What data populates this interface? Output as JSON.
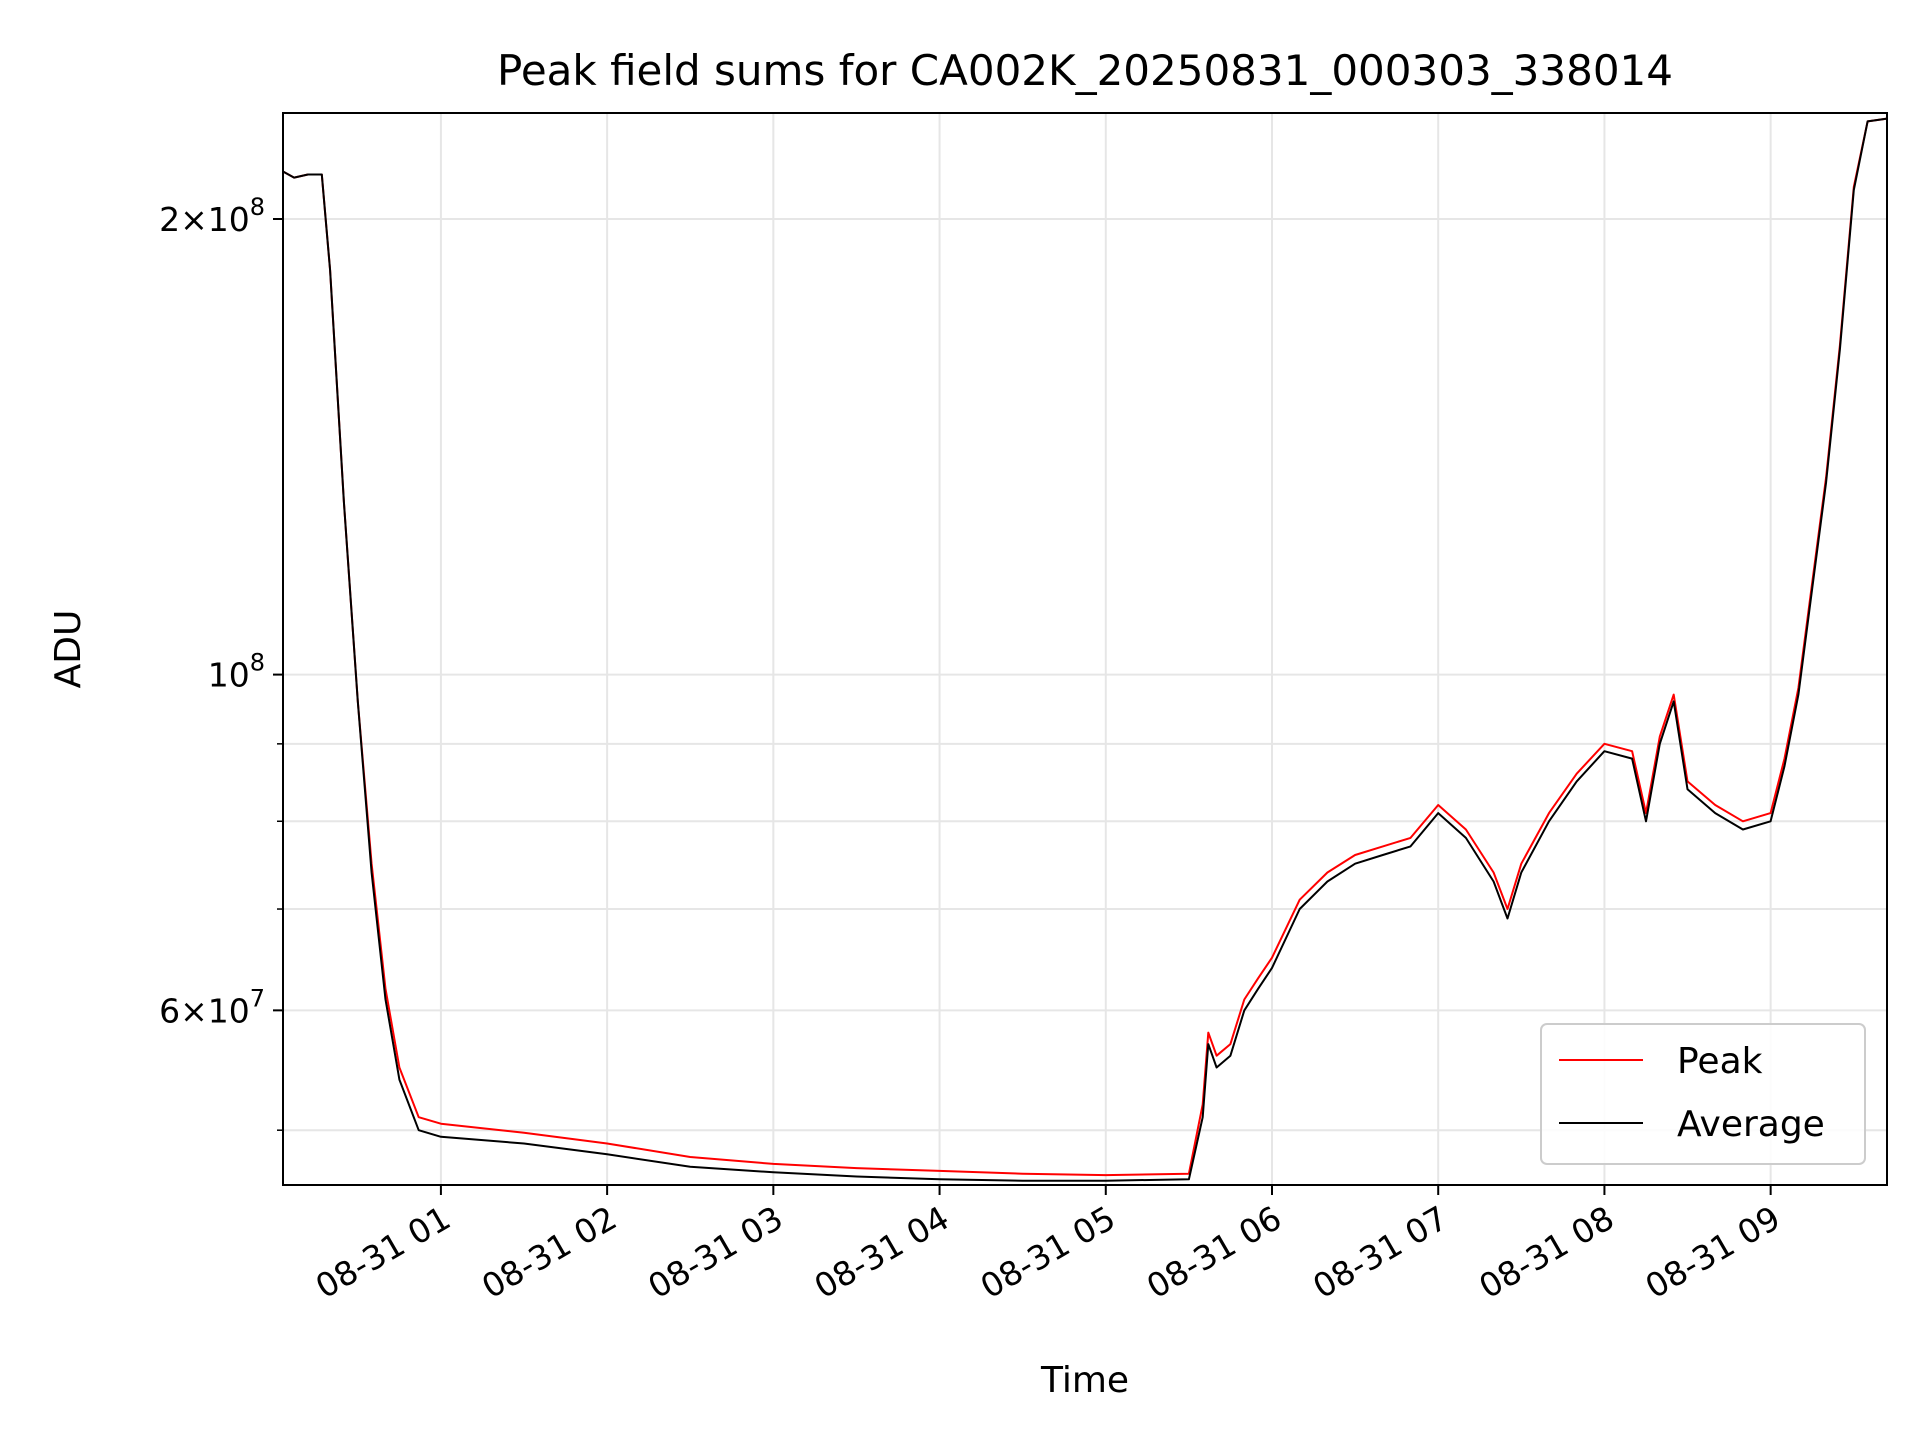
{
  "chart_data": {
    "type": "line",
    "title": "Peak field sums for CA002K_20250831_000303_338014",
    "xlabel": "Time",
    "ylabel": "ADU",
    "y_scale": "log",
    "ylim": [
      46000000,
      235000000
    ],
    "xlim": [
      "2025-08-31 00:03",
      "2025-08-31 09:42"
    ],
    "x_ticks": [
      "08-31 01",
      "08-31 02",
      "08-31 03",
      "08-31 04",
      "08-31 05",
      "08-31 06",
      "08-31 07",
      "08-31 08",
      "08-31 09"
    ],
    "y_tick_labels": [
      {
        "value": 200000000,
        "mantissa": "2",
        "exponent": "8"
      },
      {
        "value": 100000000,
        "mantissa": "",
        "exponent": "8"
      },
      {
        "value": 60000000,
        "mantissa": "6",
        "exponent": "7"
      }
    ],
    "y_minor_grid": [
      50000000,
      70000000,
      80000000,
      90000000
    ],
    "grid": true,
    "legend": {
      "placement": "lower-right"
    },
    "series": [
      {
        "name": "Peak",
        "color": "#ff0000",
        "x": [
          "2025-08-31 00:03",
          "2025-08-31 00:07",
          "2025-08-31 00:12",
          "2025-08-31 00:17",
          "2025-08-31 00:20",
          "2025-08-31 00:25",
          "2025-08-31 00:30",
          "2025-08-31 00:35",
          "2025-08-31 00:40",
          "2025-08-31 00:45",
          "2025-08-31 00:52",
          "2025-08-31 01:00",
          "2025-08-31 01:30",
          "2025-08-31 02:00",
          "2025-08-31 02:30",
          "2025-08-31 03:00",
          "2025-08-31 03:30",
          "2025-08-31 04:00",
          "2025-08-31 04:30",
          "2025-08-31 05:00",
          "2025-08-31 05:30",
          "2025-08-31 05:35",
          "2025-08-31 05:37",
          "2025-08-31 05:40",
          "2025-08-31 05:45",
          "2025-08-31 05:50",
          "2025-08-31 05:55",
          "2025-08-31 06:00",
          "2025-08-31 06:10",
          "2025-08-31 06:20",
          "2025-08-31 06:30",
          "2025-08-31 06:40",
          "2025-08-31 06:50",
          "2025-08-31 07:00",
          "2025-08-31 07:10",
          "2025-08-31 07:20",
          "2025-08-31 07:25",
          "2025-08-31 07:30",
          "2025-08-31 07:40",
          "2025-08-31 07:50",
          "2025-08-31 08:00",
          "2025-08-31 08:10",
          "2025-08-31 08:15",
          "2025-08-31 08:20",
          "2025-08-31 08:25",
          "2025-08-31 08:30",
          "2025-08-31 08:40",
          "2025-08-31 08:50",
          "2025-08-31 09:00",
          "2025-08-31 09:05",
          "2025-08-31 09:10",
          "2025-08-31 09:15",
          "2025-08-31 09:20",
          "2025-08-31 09:25",
          "2025-08-31 09:30",
          "2025-08-31 09:35",
          "2025-08-31 09:42"
        ],
        "values": [
          215000000,
          213000000,
          214000000,
          214000000,
          185000000,
          130000000,
          96000000,
          75000000,
          62000000,
          55000000,
          51000000,
          50500000,
          49800000,
          49000000,
          48000000,
          47500000,
          47200000,
          47000000,
          46800000,
          46700000,
          46800000,
          52000000,
          58000000,
          56000000,
          57000000,
          61000000,
          63000000,
          65000000,
          71000000,
          74000000,
          76000000,
          77000000,
          78000000,
          82000000,
          79000000,
          74000000,
          70000000,
          75000000,
          81000000,
          86000000,
          90000000,
          89000000,
          81000000,
          91000000,
          97000000,
          85000000,
          82000000,
          80000000,
          81000000,
          88000000,
          98000000,
          115000000,
          135000000,
          165000000,
          210000000,
          232000000,
          233000000
        ]
      },
      {
        "name": "Average",
        "color": "#000000",
        "x": [
          "2025-08-31 00:03",
          "2025-08-31 00:07",
          "2025-08-31 00:12",
          "2025-08-31 00:17",
          "2025-08-31 00:20",
          "2025-08-31 00:25",
          "2025-08-31 00:30",
          "2025-08-31 00:35",
          "2025-08-31 00:40",
          "2025-08-31 00:45",
          "2025-08-31 00:52",
          "2025-08-31 01:00",
          "2025-08-31 01:30",
          "2025-08-31 02:00",
          "2025-08-31 02:30",
          "2025-08-31 03:00",
          "2025-08-31 03:30",
          "2025-08-31 04:00",
          "2025-08-31 04:30",
          "2025-08-31 05:00",
          "2025-08-31 05:30",
          "2025-08-31 05:35",
          "2025-08-31 05:37",
          "2025-08-31 05:40",
          "2025-08-31 05:45",
          "2025-08-31 05:50",
          "2025-08-31 05:55",
          "2025-08-31 06:00",
          "2025-08-31 06:10",
          "2025-08-31 06:20",
          "2025-08-31 06:30",
          "2025-08-31 06:40",
          "2025-08-31 06:50",
          "2025-08-31 07:00",
          "2025-08-31 07:10",
          "2025-08-31 07:20",
          "2025-08-31 07:25",
          "2025-08-31 07:30",
          "2025-08-31 07:40",
          "2025-08-31 07:50",
          "2025-08-31 08:00",
          "2025-08-31 08:10",
          "2025-08-31 08:15",
          "2025-08-31 08:20",
          "2025-08-31 08:25",
          "2025-08-31 08:30",
          "2025-08-31 08:40",
          "2025-08-31 08:50",
          "2025-08-31 09:00",
          "2025-08-31 09:05",
          "2025-08-31 09:10",
          "2025-08-31 09:15",
          "2025-08-31 09:20",
          "2025-08-31 09:25",
          "2025-08-31 09:30",
          "2025-08-31 09:35",
          "2025-08-31 09:42"
        ],
        "values": [
          215000000,
          213000000,
          214000000,
          214000000,
          185000000,
          130000000,
          96000000,
          74000000,
          61000000,
          54000000,
          50000000,
          49500000,
          49000000,
          48200000,
          47300000,
          46900000,
          46600000,
          46400000,
          46300000,
          46300000,
          46400000,
          51000000,
          57000000,
          55000000,
          56000000,
          60000000,
          62000000,
          64000000,
          70000000,
          73000000,
          75000000,
          76000000,
          77000000,
          81000000,
          78000000,
          73000000,
          69000000,
          74000000,
          80000000,
          85000000,
          89000000,
          88000000,
          80000000,
          90000000,
          96000000,
          84000000,
          81000000,
          79000000,
          80000000,
          87000000,
          97000000,
          114000000,
          134000000,
          164000000,
          209000000,
          232000000,
          233000000
        ]
      }
    ]
  }
}
